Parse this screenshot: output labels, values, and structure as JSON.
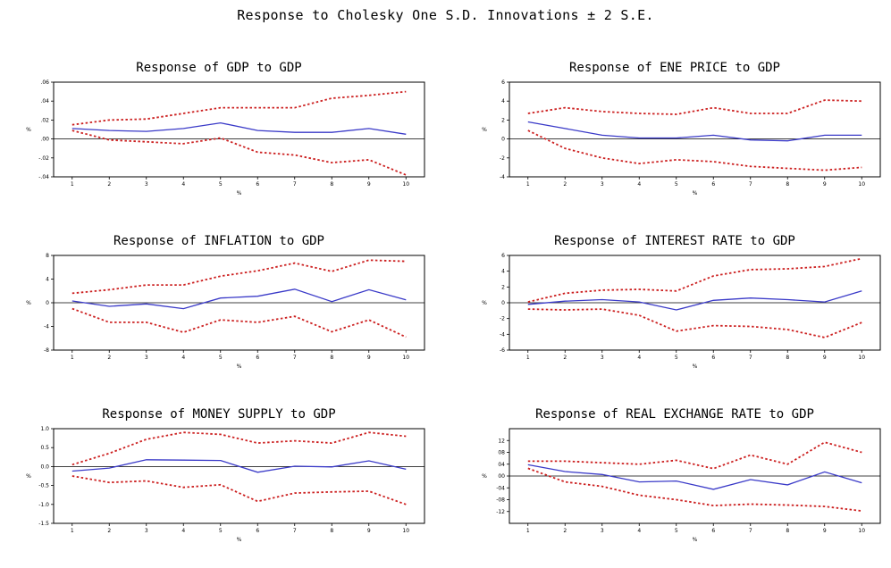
{
  "page": {
    "title": "Response to Cholesky One S.D. Innovations ± 2 S.E."
  },
  "chart_data": [
    {
      "type": "line",
      "title": "Response of GDP to GDP",
      "xlabel": "%",
      "ylabel": "%",
      "x": [
        1,
        2,
        3,
        4,
        5,
        6,
        7,
        8,
        9,
        10
      ],
      "ylim": [
        -0.04,
        0.06
      ],
      "yticks": [
        0.06,
        0.04,
        0.02,
        0.0,
        -0.02,
        -0.04
      ],
      "ytick_labels": [
        ".06",
        ".04",
        ".02",
        ".00",
        "-.02",
        "-.04"
      ],
      "grid": false,
      "series": [
        {
          "values": [
            0.011,
            0.009,
            0.008,
            0.011,
            0.017,
            0.009,
            0.007,
            0.007,
            0.011,
            0.005
          ],
          "color": "#3a3ac8",
          "style": "solid"
        },
        {
          "values": [
            0.015,
            0.02,
            0.021,
            0.027,
            0.033,
            0.033,
            0.033,
            0.043,
            0.046,
            0.05
          ],
          "color": "#cc2020",
          "style": "dotted"
        },
        {
          "values": [
            0.009,
            -0.001,
            -0.003,
            -0.005,
            0.001,
            -0.014,
            -0.017,
            -0.025,
            -0.022,
            -0.038
          ],
          "color": "#cc2020",
          "style": "dotted"
        }
      ]
    },
    {
      "type": "line",
      "title": "Response of ENE PRICE to GDP",
      "xlabel": "%",
      "ylabel": "%",
      "x": [
        1,
        2,
        3,
        4,
        5,
        6,
        7,
        8,
        9,
        10
      ],
      "ylim": [
        -4,
        6
      ],
      "yticks": [
        6,
        4,
        2,
        0,
        -2,
        -4
      ],
      "ytick_labels": [
        "6",
        "4",
        "2",
        "0",
        "-2",
        "-4"
      ],
      "grid": false,
      "series": [
        {
          "values": [
            1.8,
            1.1,
            0.4,
            0.1,
            0.1,
            0.4,
            -0.1,
            -0.2,
            0.4,
            0.4
          ],
          "color": "#3a3ac8",
          "style": "solid"
        },
        {
          "values": [
            2.7,
            3.3,
            2.9,
            2.7,
            2.6,
            3.3,
            2.7,
            2.7,
            4.1,
            4.0
          ],
          "color": "#cc2020",
          "style": "dotted"
        },
        {
          "values": [
            0.9,
            -1.0,
            -2.0,
            -2.6,
            -2.2,
            -2.4,
            -2.9,
            -3.1,
            -3.3,
            -3.0
          ],
          "color": "#cc2020",
          "style": "dotted"
        }
      ]
    },
    {
      "type": "line",
      "title": "Response of INFLATION to GDP",
      "xlabel": "%",
      "ylabel": "%",
      "x": [
        1,
        2,
        3,
        4,
        5,
        6,
        7,
        8,
        9,
        10
      ],
      "ylim": [
        -8,
        8
      ],
      "yticks": [
        8,
        4,
        0,
        -4,
        -8
      ],
      "ytick_labels": [
        "8",
        "4",
        "0",
        "-4",
        "-8"
      ],
      "grid": false,
      "series": [
        {
          "values": [
            0.3,
            -0.6,
            -0.2,
            -1.0,
            0.8,
            1.1,
            2.3,
            0.2,
            2.2,
            0.5
          ],
          "color": "#3a3ac8",
          "style": "solid"
        },
        {
          "values": [
            1.6,
            2.2,
            3.0,
            3.0,
            4.5,
            5.4,
            6.7,
            5.3,
            7.2,
            7.0
          ],
          "color": "#cc2020",
          "style": "dotted"
        },
        {
          "values": [
            -1.0,
            -3.3,
            -3.3,
            -5.0,
            -2.9,
            -3.3,
            -2.3,
            -4.9,
            -2.9,
            -5.8
          ],
          "color": "#cc2020",
          "style": "dotted"
        }
      ]
    },
    {
      "type": "line",
      "title": "Response of INTEREST RATE to GDP",
      "xlabel": "%",
      "ylabel": "%",
      "x": [
        1,
        2,
        3,
        4,
        5,
        6,
        7,
        8,
        9,
        10
      ],
      "ylim": [
        -6,
        6
      ],
      "yticks": [
        6,
        4,
        2,
        0,
        -2,
        -4,
        -6
      ],
      "ytick_labels": [
        "6",
        "4",
        "2",
        "0",
        "-2",
        "-4",
        "-6"
      ],
      "grid": false,
      "series": [
        {
          "values": [
            -0.2,
            0.2,
            0.4,
            0.1,
            -0.9,
            0.3,
            0.6,
            0.4,
            0.1,
            1.5
          ],
          "color": "#3a3ac8",
          "style": "solid"
        },
        {
          "values": [
            0.1,
            1.2,
            1.6,
            1.7,
            1.5,
            3.4,
            4.2,
            4.3,
            4.6,
            5.6
          ],
          "color": "#cc2020",
          "style": "dotted"
        },
        {
          "values": [
            -0.8,
            -0.9,
            -0.8,
            -1.6,
            -3.6,
            -2.9,
            -3.0,
            -3.4,
            -4.4,
            -2.5
          ],
          "color": "#cc2020",
          "style": "dotted"
        }
      ]
    },
    {
      "type": "line",
      "title": "Response of MONEY SUPPLY to GDP",
      "xlabel": "%",
      "ylabel": "%",
      "x": [
        1,
        2,
        3,
        4,
        5,
        6,
        7,
        8,
        9,
        10
      ],
      "ylim": [
        -1.5,
        1.0
      ],
      "yticks": [
        1.0,
        0.5,
        0.0,
        -0.5,
        -1.0,
        -1.5
      ],
      "ytick_labels": [
        "1.0",
        "0.5",
        "0.0",
        "-0.5",
        "-1.0",
        "-1.5"
      ],
      "grid": false,
      "series": [
        {
          "values": [
            -0.12,
            -0.04,
            0.18,
            0.17,
            0.16,
            -0.15,
            0.01,
            -0.01,
            0.15,
            -0.07
          ],
          "color": "#3a3ac8",
          "style": "solid"
        },
        {
          "values": [
            0.05,
            0.35,
            0.72,
            0.9,
            0.85,
            0.62,
            0.68,
            0.62,
            0.9,
            0.8
          ],
          "color": "#cc2020",
          "style": "dotted"
        },
        {
          "values": [
            -0.25,
            -0.42,
            -0.38,
            -0.55,
            -0.48,
            -0.92,
            -0.7,
            -0.67,
            -0.65,
            -1.0
          ],
          "color": "#cc2020",
          "style": "dotted"
        }
      ]
    },
    {
      "type": "line",
      "title": "Response of REAL EXCHANGE RATE to GDP",
      "xlabel": "%",
      "ylabel": "%",
      "x": [
        1,
        2,
        3,
        4,
        5,
        6,
        7,
        8,
        9,
        10
      ],
      "ylim": [
        -0.16,
        0.16
      ],
      "yticks": [
        0.12,
        0.08,
        0.04,
        0.0,
        -0.04,
        -0.08,
        -0.12
      ],
      "ytick_labels": [
        "12",
        "08",
        "04",
        "00",
        "-04",
        "-08",
        "-12"
      ],
      "grid": false,
      "series": [
        {
          "values": [
            0.038,
            0.015,
            0.005,
            -0.02,
            -0.017,
            -0.045,
            -0.012,
            -0.03,
            0.014,
            -0.023
          ],
          "color": "#3a3ac8",
          "style": "solid"
        },
        {
          "values": [
            0.05,
            0.05,
            0.045,
            0.04,
            0.053,
            0.025,
            0.071,
            0.04,
            0.114,
            0.08
          ],
          "color": "#cc2020",
          "style": "dotted"
        },
        {
          "values": [
            0.026,
            -0.02,
            -0.035,
            -0.065,
            -0.08,
            -0.1,
            -0.095,
            -0.098,
            -0.103,
            -0.118
          ],
          "color": "#cc2020",
          "style": "dotted"
        }
      ]
    }
  ]
}
